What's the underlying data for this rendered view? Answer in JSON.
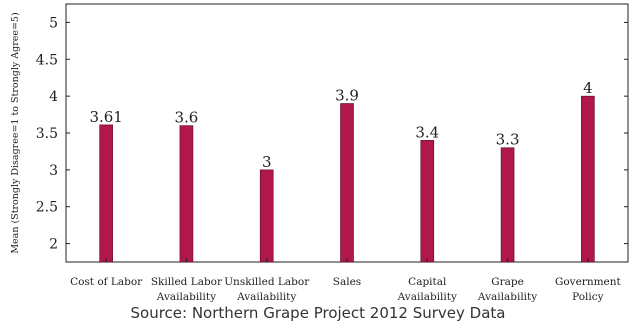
{
  "chart_data": {
    "type": "bar",
    "ylabel": "Mean (Strongly Disagree=1 to Strongly Agree=5)",
    "ylim": [
      1.75,
      5.25
    ],
    "yticks": [
      "2",
      "2.5",
      "3",
      "3.5",
      "4",
      "4.5",
      "5"
    ],
    "ytick_values": [
      2,
      2.5,
      3,
      3.5,
      4,
      4.5,
      5
    ],
    "categories": [
      [
        "Cost of Labor"
      ],
      [
        "Skilled Labor",
        "Availability"
      ],
      [
        "Unskilled Labor",
        "Availability"
      ],
      [
        "Sales"
      ],
      [
        "Capital",
        "Availability"
      ],
      [
        "Grape",
        "Availability"
      ],
      [
        "Government",
        "Policy"
      ]
    ],
    "values": [
      3.61,
      3.6,
      3,
      3.9,
      3.4,
      3.3,
      4
    ],
    "value_labels": [
      "3.61",
      "3.6",
      "3",
      "3.9",
      "3.4",
      "3.3",
      "4"
    ],
    "bar_color": "#b0174a",
    "grid": false
  },
  "caption": "Source: Northern Grape Project 2012 Survey Data"
}
